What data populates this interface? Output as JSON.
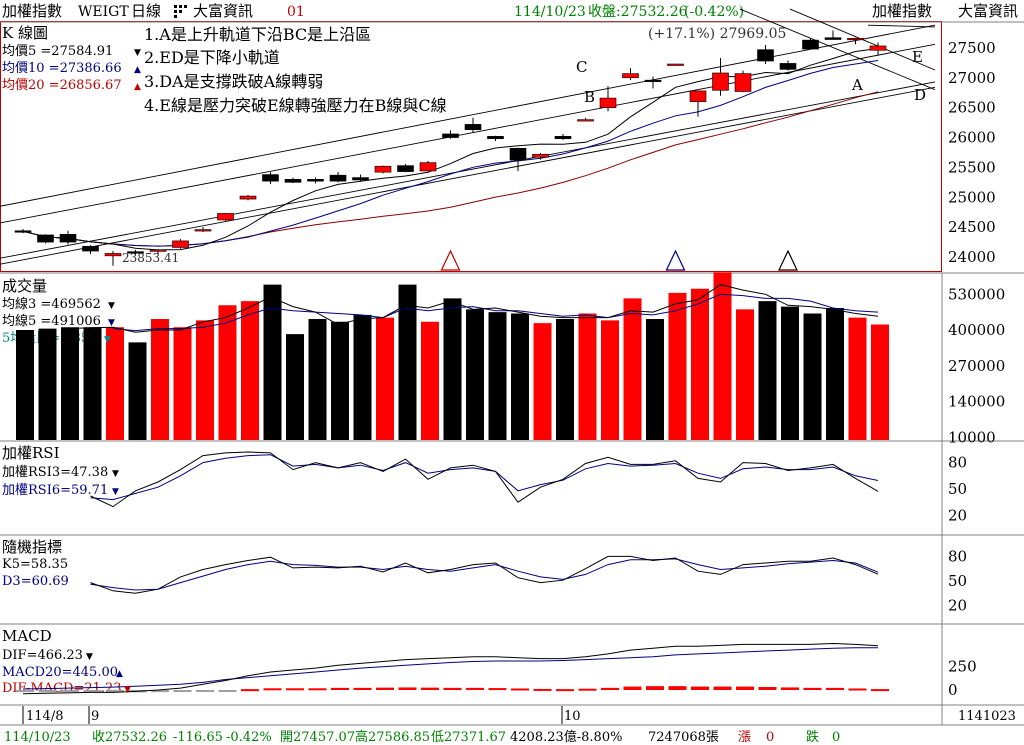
{
  "header": {
    "index_name": "加權指數",
    "code": "WEIGT",
    "period": "日線",
    "source": "大富資訊",
    "num": "01",
    "date": "114/10/23",
    "close_label": "收盤:27532.26",
    "change_pct": "(-0.42%)",
    "right_index": "加權指數",
    "right_source": "大富資訊"
  },
  "k_panel": {
    "title": "K 線圖",
    "ma5": "均價5 =27584.91",
    "ma10": "均價10 =27386.66",
    "ma20": "均價20 =26856.67",
    "notes": [
      "1.A是上升軌道下沿BC是上沿區",
      "2.ED是下降小軌道",
      "3.DA是支撐跌破A線轉弱",
      "4.E線是壓力突破E線轉強壓力在B線與C線"
    ],
    "peak_label": "(+17.1%) 27969.05",
    "low_label": "23853.41",
    "line_labels": {
      "A": "A",
      "B": "B",
      "C": "C",
      "D": "D",
      "E": "E"
    }
  },
  "vol_panel": {
    "title": "成交量",
    "ma3": "均線3 =469562",
    "ma5": "均線5 =491006",
    "ratio": "5均量比=0.85"
  },
  "rsi_panel": {
    "title": "加權RSI",
    "rsi3": "加權RSI3=47.38",
    "rsi6": "加權RSI6=59.71"
  },
  "kd_panel": {
    "title": "隨機指標",
    "k5": "K5=58.35",
    "d3": "D3=60.69"
  },
  "macd_panel": {
    "title": "MACD",
    "dif": "DIF=466.23",
    "macd": "MACD20=445.00",
    "osc": "DIF-MACD=21.23"
  },
  "xaxis": {
    "m1": "114/8",
    "m2": "9",
    "m3": "10",
    "end": "1141023"
  },
  "status": {
    "date": "114/10/23",
    "close": "收27532.26",
    "chg": "-116.65",
    "pct": "-0.42%",
    "open": "開27457.07",
    "high": "高27586.85",
    "low": "低27371.67",
    "amount": "4208.23億-8.80%",
    "shares": "7247068張",
    "up_label": "漲",
    "up_val": "0",
    "down_label": "跌",
    "down_val": "0"
  },
  "colors": {
    "up": "#ff0000",
    "down": "#000000",
    "ma5": "#000000",
    "ma10": "#000080",
    "ma20": "#8b0000",
    "label_green": "#008000",
    "frame": "#c00000"
  },
  "chart_data": {
    "type": "candlestick",
    "ohlc": [
      [
        24440,
        24470,
        24400,
        24430
      ],
      [
        24370,
        24380,
        24230,
        24250
      ],
      [
        24380,
        24440,
        24210,
        24250
      ],
      [
        24180,
        24200,
        24050,
        24100
      ],
      [
        24020,
        24100,
        23853.41,
        24060
      ],
      [
        24090,
        24120,
        24040,
        24070
      ],
      [
        24100,
        24130,
        24050,
        24120
      ],
      [
        24160,
        24300,
        24140,
        24270
      ],
      [
        24440,
        24500,
        24420,
        24460
      ],
      [
        24620,
        24740,
        24600,
        24730
      ],
      [
        24970,
        25040,
        24950,
        25020
      ],
      [
        25380,
        25420,
        25220,
        25270
      ],
      [
        25300,
        25330,
        25240,
        25250
      ],
      [
        25300,
        25330,
        25230,
        25270
      ],
      [
        25370,
        25420,
        25250,
        25270
      ],
      [
        25330,
        25380,
        25260,
        25290
      ],
      [
        25420,
        25530,
        25400,
        25520
      ],
      [
        25530,
        25560,
        25420,
        25430
      ],
      [
        25440,
        25610,
        25440,
        25580
      ],
      [
        26060,
        26120,
        25980,
        26000
      ],
      [
        26220,
        26330,
        26080,
        26130
      ],
      [
        26020,
        26030,
        25940,
        25980
      ],
      [
        25820,
        25830,
        25440,
        25620
      ],
      [
        25670,
        25740,
        25630,
        25720
      ],
      [
        26020,
        26060,
        25960,
        25980
      ],
      [
        26300,
        26330,
        26280,
        26300
      ],
      [
        26500,
        26860,
        26440,
        26660
      ],
      [
        27000,
        27160,
        26960,
        27070
      ],
      [
        26960,
        27020,
        26820,
        26940
      ],
      [
        27220,
        27230,
        27210,
        27230
      ],
      [
        26600,
        26780,
        26350,
        26780
      ],
      [
        26790,
        27330,
        26700,
        27080
      ],
      [
        26770,
        27120,
        26760,
        27070
      ],
      [
        27470,
        27550,
        27230,
        27280
      ],
      [
        27240,
        27290,
        27120,
        27140
      ],
      [
        27630,
        27660,
        27490,
        27480
      ],
      [
        27670,
        27790,
        27640,
        27640
      ],
      [
        27660,
        27670,
        27560,
        27660
      ],
      [
        27460,
        27590,
        27370,
        27532.26
      ]
    ],
    "volume": [
      400000,
      405000,
      410000,
      410000,
      410000,
      355000,
      440000,
      410000,
      435000,
      490000,
      505000,
      565000,
      385000,
      440000,
      430000,
      455000,
      445000,
      565000,
      430000,
      515000,
      475000,
      465000,
      460000,
      425000,
      440000,
      460000,
      435000,
      515000,
      440000,
      535000,
      550000,
      610000,
      475000,
      505000,
      485000,
      460000,
      480000,
      445000,
      420000
    ],
    "ma5_vol": [
      null,
      null,
      null,
      null,
      405000,
      398000,
      405000,
      405000,
      410000,
      425000,
      455000,
      480000,
      470000,
      465000,
      460000,
      455000,
      445000,
      480000,
      470000,
      480000,
      485000,
      470000,
      470000,
      460000,
      450000,
      455000,
      445000,
      460000,
      455000,
      470000,
      495000,
      530000,
      525000,
      515000,
      515000,
      505000,
      480000,
      470000,
      465000
    ],
    "ma3_vol": [
      null,
      null,
      405000,
      408000,
      410000,
      392000,
      400000,
      400000,
      430000,
      445000,
      480000,
      520000,
      485000,
      465000,
      420000,
      440000,
      445000,
      490000,
      480000,
      505000,
      475000,
      480000,
      465000,
      450000,
      445000,
      445000,
      445000,
      470000,
      465000,
      495000,
      510000,
      565000,
      545000,
      530000,
      490000,
      485000,
      475000,
      460000,
      450000
    ],
    "rsi3": [
      null,
      null,
      null,
      42,
      30,
      48,
      58,
      72,
      88,
      91,
      92,
      91,
      72,
      80,
      74,
      80,
      70,
      84,
      61,
      74,
      77,
      70,
      35,
      52,
      61,
      79,
      86,
      78,
      78,
      82,
      62,
      58,
      80,
      79,
      71,
      74,
      78,
      62,
      47.38
    ],
    "rsi6": [
      null,
      null,
      null,
      40,
      38,
      45,
      52,
      65,
      80,
      85,
      88,
      89,
      76,
      78,
      74,
      77,
      71,
      80,
      68,
      72,
      74,
      70,
      48,
      55,
      60,
      73,
      79,
      76,
      77,
      79,
      68,
      62,
      73,
      75,
      72,
      72,
      75,
      65,
      59.71
    ],
    "k5": [
      null,
      null,
      null,
      48,
      38,
      35,
      40,
      55,
      64,
      70,
      75,
      79,
      66,
      67,
      66,
      68,
      61,
      72,
      60,
      64,
      70,
      72,
      54,
      48,
      51,
      65,
      80,
      80,
      75,
      78,
      62,
      58,
      70,
      72,
      74,
      74,
      78,
      70,
      58.35
    ],
    "d3": [
      null,
      null,
      null,
      46,
      42,
      39,
      40,
      48,
      56,
      64,
      70,
      74,
      70,
      69,
      67,
      67,
      64,
      68,
      64,
      62,
      66,
      70,
      62,
      55,
      52,
      58,
      70,
      76,
      76,
      77,
      70,
      64,
      66,
      68,
      71,
      73,
      75,
      72,
      60.69
    ],
    "dif": [
      -40,
      -35,
      -30,
      -25,
      -25,
      -15,
      0,
      20,
      60,
      100,
      150,
      190,
      210,
      230,
      260,
      280,
      300,
      320,
      330,
      340,
      350,
      350,
      340,
      330,
      330,
      350,
      380,
      420,
      440,
      460,
      460,
      470,
      480,
      480,
      480,
      480,
      490,
      480,
      466.23
    ],
    "macd": [
      10,
      15,
      20,
      25,
      30,
      40,
      50,
      60,
      80,
      110,
      130,
      150,
      170,
      190,
      210,
      230,
      245,
      260,
      275,
      290,
      300,
      305,
      305,
      305,
      310,
      320,
      330,
      340,
      350,
      370,
      380,
      390,
      400,
      410,
      420,
      430,
      440,
      445,
      445.0
    ],
    "osc": [
      -50,
      -50,
      -50,
      -50,
      -55,
      -55,
      -50,
      -40,
      -20,
      -10,
      20,
      40,
      40,
      40,
      50,
      50,
      55,
      60,
      55,
      50,
      50,
      45,
      35,
      25,
      20,
      30,
      50,
      80,
      90,
      90,
      80,
      80,
      80,
      70,
      60,
      50,
      50,
      35,
      21.23
    ],
    "y_ticks_price": [
      "27500",
      "27000",
      "26500",
      "26000",
      "25500",
      "25000",
      "24500",
      "24000"
    ],
    "y_ticks_vol": [
      "530000",
      "400000",
      "270000",
      "140000",
      "10000"
    ],
    "y_ticks_rsi": [
      "80",
      "50",
      "20"
    ],
    "y_ticks_kd": [
      "80",
      "50",
      "20"
    ],
    "y_ticks_macd": [
      "250",
      "0"
    ],
    "peak_value": 27969.05,
    "low_value": 23853.41,
    "peak_pct": "+17.1%"
  }
}
